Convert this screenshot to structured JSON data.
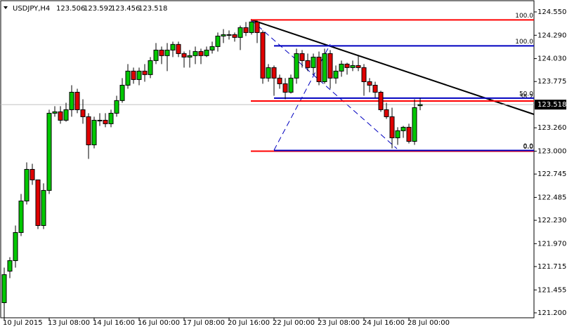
{
  "chart_data": {
    "type": "candlestick",
    "symbol": "USDJPY,H4",
    "categories": [
      "10 Jul 2015",
      null,
      null,
      null,
      null,
      null,
      null,
      null,
      "13 Jul 08:00",
      null,
      null,
      null,
      null,
      null,
      null,
      null,
      "14 Jul 16:00",
      null,
      null,
      null,
      null,
      null,
      null,
      null,
      "16 Jul 00:00",
      null,
      null,
      null,
      null,
      null,
      null,
      null,
      "17 Jul 08:00",
      null,
      null,
      null,
      null,
      null,
      null,
      null,
      "20 Jul 16:00",
      null,
      null,
      null,
      null,
      null,
      null,
      null,
      "22 Jul 00:00",
      null,
      null,
      null,
      null,
      null,
      null,
      null,
      "23 Jul 08:00",
      null,
      null,
      null,
      null,
      null,
      null,
      null,
      "24 Jul 16:00",
      null,
      null,
      null,
      null,
      null,
      null,
      null,
      "28 Jul 00:00",
      null,
      null
    ],
    "open": [
      121.313,
      121.664,
      121.781,
      122.094,
      122.445,
      122.797,
      122.68,
      122.172,
      122.563,
      123.422,
      123.438,
      123.344,
      123.461,
      123.656,
      123.461,
      123.383,
      123.07,
      123.344,
      123.344,
      123.305,
      123.422,
      123.563,
      123.734,
      123.891,
      123.797,
      123.891,
      123.852,
      124.008,
      124.125,
      124.063,
      124.125,
      124.188,
      124.086,
      124.047,
      124.063,
      124.109,
      124.063,
      124.125,
      124.164,
      124.281,
      124.297,
      124.297,
      124.266,
      124.375,
      124.32,
      124.438,
      124.32,
      123.813,
      123.93,
      123.813,
      123.75,
      123.656,
      123.813,
      124.086,
      124.008,
      123.93,
      124.047,
      123.773,
      124.086,
      123.813,
      123.891,
      123.969,
      123.93,
      123.953,
      123.93,
      123.773,
      123.734,
      123.656,
      123.461,
      123.383,
      123.148,
      123.227,
      123.266,
      123.109,
      123.506
    ],
    "high": [
      121.703,
      121.82,
      122.172,
      122.523,
      122.875,
      122.859,
      122.68,
      122.641,
      123.461,
      123.5,
      123.5,
      123.539,
      123.734,
      123.695,
      123.578,
      123.422,
      123.383,
      123.422,
      123.422,
      123.461,
      123.617,
      123.813,
      123.969,
      123.93,
      123.93,
      123.969,
      124.047,
      124.203,
      124.164,
      124.203,
      124.219,
      124.219,
      124.109,
      124.125,
      124.164,
      124.141,
      124.164,
      124.219,
      124.32,
      124.359,
      124.344,
      124.32,
      124.398,
      124.438,
      124.453,
      124.453,
      124.344,
      123.969,
      123.953,
      123.852,
      123.813,
      123.852,
      124.141,
      124.125,
      124.086,
      124.086,
      124.109,
      124.141,
      124.125,
      123.953,
      124.008,
      123.984,
      124.008,
      124.063,
      123.969,
      123.813,
      123.773,
      123.672,
      123.539,
      123.484,
      123.266,
      123.281,
      123.305,
      123.578,
      123.592
    ],
    "low": [
      121.117,
      121.586,
      121.703,
      122.055,
      122.406,
      122.625,
      122.133,
      122.133,
      122.523,
      123.383,
      123.305,
      123.328,
      123.383,
      123.422,
      123.305,
      122.914,
      123.031,
      123.281,
      123.266,
      123.266,
      123.383,
      123.539,
      123.695,
      123.75,
      123.734,
      123.773,
      123.813,
      123.969,
      123.969,
      123.891,
      124.047,
      124.047,
      123.93,
      123.93,
      123.969,
      123.969,
      124.047,
      124.086,
      124.109,
      124.203,
      124.242,
      124.219,
      124.125,
      124.281,
      124.297,
      124.203,
      123.75,
      123.773,
      123.617,
      123.695,
      123.578,
      123.641,
      123.75,
      123.93,
      123.891,
      123.852,
      123.734,
      123.75,
      123.695,
      123.75,
      123.828,
      123.852,
      123.891,
      123.891,
      123.617,
      123.656,
      123.594,
      123.438,
      123.359,
      123.031,
      123.07,
      123.148,
      123.086,
      123.07,
      123.456
    ],
    "close": [
      121.625,
      121.781,
      122.094,
      122.445,
      122.797,
      122.68,
      122.172,
      122.563,
      123.422,
      123.438,
      123.344,
      123.461,
      123.656,
      123.461,
      123.383,
      123.07,
      123.344,
      123.344,
      123.305,
      123.422,
      123.563,
      123.734,
      123.891,
      123.797,
      123.891,
      123.852,
      124.008,
      124.125,
      124.063,
      124.125,
      124.188,
      124.086,
      124.047,
      124.063,
      124.109,
      124.063,
      124.125,
      124.164,
      124.281,
      124.297,
      124.297,
      124.266,
      124.375,
      124.32,
      124.438,
      124.32,
      123.813,
      123.93,
      123.813,
      123.75,
      123.656,
      123.813,
      124.086,
      124.008,
      123.93,
      124.047,
      123.773,
      124.086,
      123.813,
      123.891,
      123.969,
      123.93,
      123.953,
      123.93,
      123.773,
      123.734,
      123.656,
      123.461,
      123.383,
      123.148,
      123.227,
      123.266,
      123.109,
      123.484,
      123.518
    ],
    "up_color": "#00c800",
    "down_color": "#e00000",
    "ylim": [
      121.145,
      124.667
    ],
    "yticks": [
      {
        "value": 124.55,
        "label": "124.550"
      },
      {
        "value": 124.29,
        "label": "124.290"
      },
      {
        "value": 124.03,
        "label": "124.030"
      },
      123.775,
      {
        "value": 123.26,
        "label": "123.260"
      },
      {
        "value": 123,
        "label": "123.000"
      },
      122.745,
      122.485,
      {
        "value": 122.23,
        "label": "122.230"
      },
      {
        "value": 121.97,
        "label": "121.970"
      },
      121.715,
      121.455,
      {
        "value": 121.2,
        "label": "121.200"
      }
    ],
    "fibonacci": [
      {
        "color": "#ff0000",
        "high": 124.461,
        "low": 123.0,
        "levels": [
          {
            "value": 100,
            "label": "100.0"
          },
          38.2,
          {
            "value": 0,
            "label": "0.0"
          }
        ]
      },
      {
        "color": "#0000c0",
        "high": 124.172,
        "low": 123.008,
        "levels": [
          {
            "value": 100,
            "label": "100.0"
          },
          {
            "value": 50,
            "label": "50.0"
          },
          {
            "value": 0,
            "label": "0.0"
          }
        ]
      }
    ]
  }
}
